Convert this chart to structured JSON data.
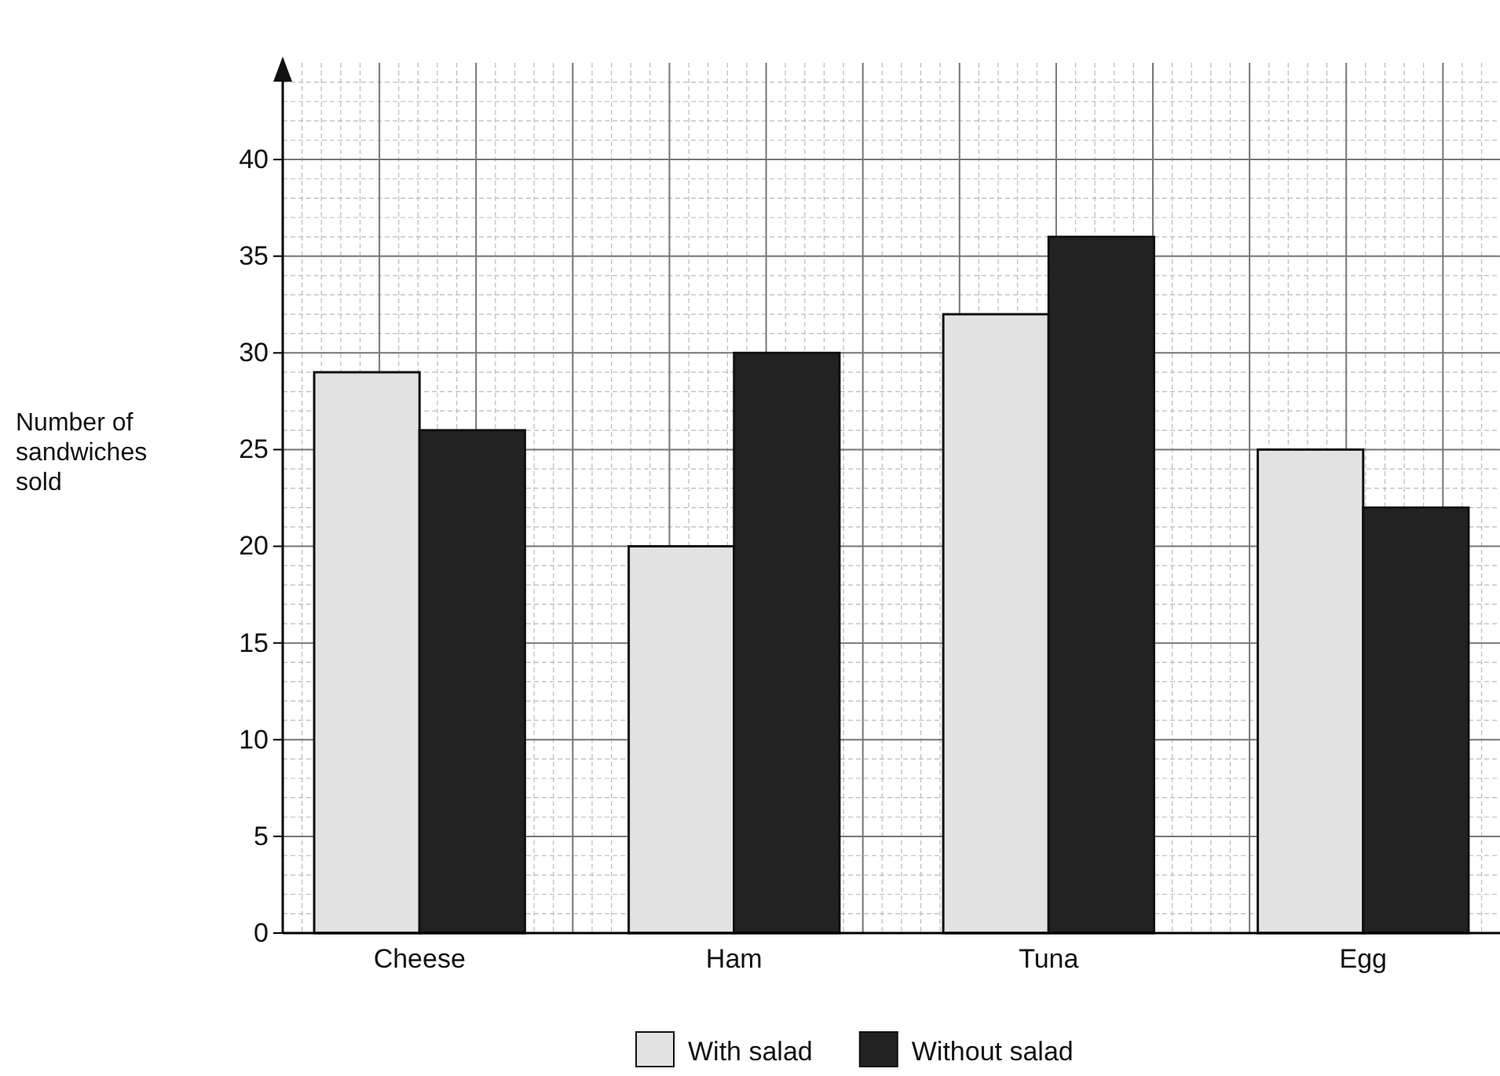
{
  "chart_data": {
    "type": "bar",
    "ylabel": "Number of sandwiches sold",
    "categories": [
      "Cheese",
      "Ham",
      "Tuna",
      "Egg"
    ],
    "series": [
      {
        "name": "With salad",
        "color": "#e2e2e2",
        "values": [
          29,
          20,
          32,
          25
        ]
      },
      {
        "name": "Without salad",
        "color": "#222222",
        "values": [
          26,
          30,
          36,
          22
        ]
      }
    ],
    "ylim": [
      0,
      45
    ],
    "yticks": [
      0,
      5,
      10,
      15,
      20,
      25,
      30,
      35,
      40
    ],
    "grid": true,
    "legend": "bottom"
  }
}
